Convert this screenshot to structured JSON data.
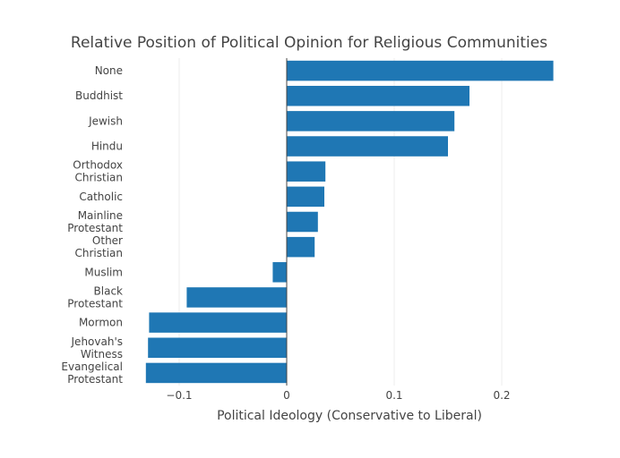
{
  "chart_data": {
    "type": "bar",
    "orientation": "horizontal",
    "title": "Relative Position of Political Opinion for Religious Communities",
    "xlabel": "Political Ideology (Conservative to Liberal)",
    "ylabel": "",
    "xlim": [
      -0.15,
      0.25
    ],
    "xticks": [
      {
        "value": -0.1,
        "label": "−0.1"
      },
      {
        "value": 0,
        "label": "0"
      },
      {
        "value": 0.1,
        "label": "0.1"
      },
      {
        "value": 0.2,
        "label": "0.2"
      }
    ],
    "grid": true,
    "legend": "none",
    "bar_color": "#1f77b4",
    "categories": [
      [
        "None"
      ],
      [
        "Buddhist"
      ],
      [
        "Jewish"
      ],
      [
        "Hindu"
      ],
      [
        "Orthodox",
        "Christian"
      ],
      [
        "Catholic"
      ],
      [
        "Mainline",
        "Protestant"
      ],
      [
        "Other",
        "Christian"
      ],
      [
        "Muslim"
      ],
      [
        "Black",
        "Protestant"
      ],
      [
        "Mormon"
      ],
      [
        "Jehovah's",
        "Witness"
      ],
      [
        "Evangelical",
        "Protestant"
      ]
    ],
    "values": [
      0.248,
      0.17,
      0.156,
      0.15,
      0.036,
      0.035,
      0.029,
      0.026,
      -0.013,
      -0.093,
      -0.128,
      -0.129,
      -0.131
    ]
  }
}
